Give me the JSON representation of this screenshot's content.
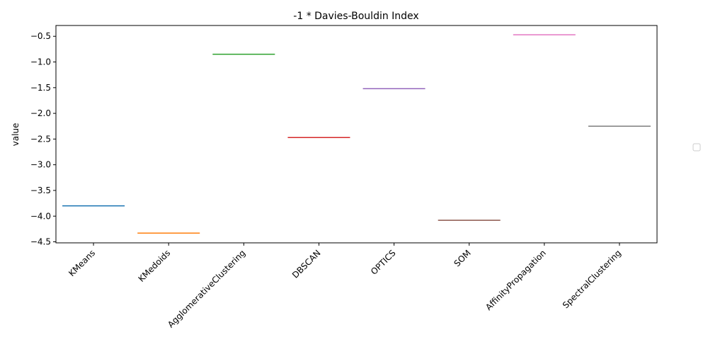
{
  "chart_data": {
    "type": "bar",
    "title": "-1 * Davies-Bouldin Index",
    "xlabel": "",
    "ylabel": "value",
    "ylim": [
      -4.52,
      -0.29
    ],
    "yticks": [
      -4.5,
      -4.0,
      -3.5,
      -3.0,
      -2.5,
      -2.0,
      -1.5,
      -1.0,
      -0.5
    ],
    "ytick_labels": [
      "−4.5",
      "−4.0",
      "−3.5",
      "−3.0",
      "−2.5",
      "−2.0",
      "−1.5",
      "−1.0",
      "−0.5"
    ],
    "grid": false,
    "legend": "center-right (empty)",
    "categories": [
      "KMeans",
      "KMedoids",
      "AgglomerativeClustering",
      "DBSCAN",
      "OPTICS",
      "SOM",
      "AffinityPropagation",
      "SpectralClustering"
    ],
    "values": [
      -3.8,
      -4.33,
      -0.85,
      -2.47,
      -1.52,
      -4.08,
      -0.47,
      -2.25
    ],
    "colors": [
      "#1f77b4",
      "#ff7f0e",
      "#2ca02c",
      "#d62728",
      "#9467bd",
      "#8c564b",
      "#e377c2",
      "#7f7f7f"
    ]
  }
}
